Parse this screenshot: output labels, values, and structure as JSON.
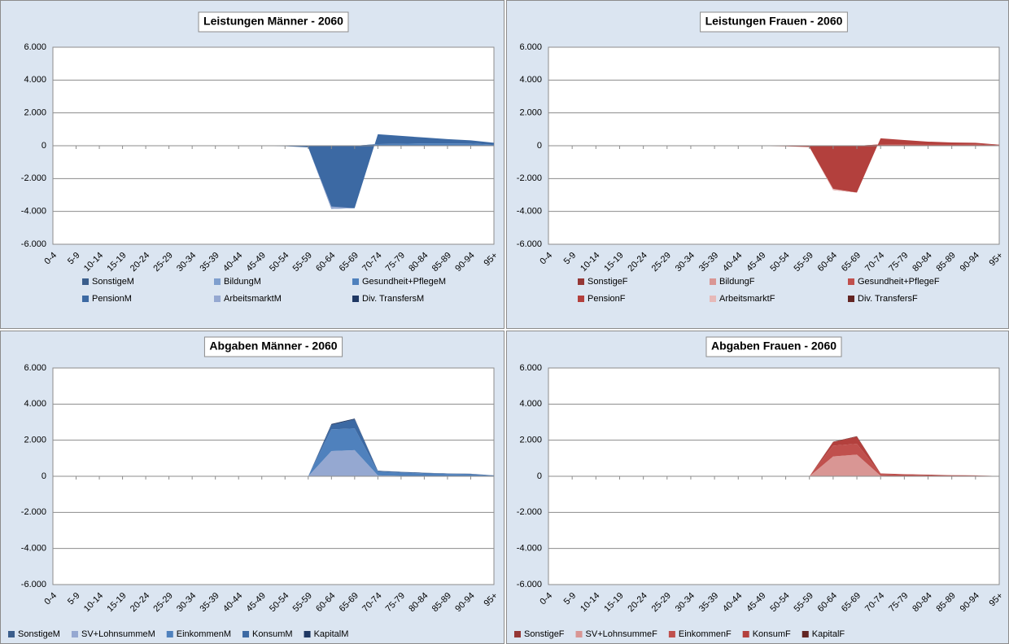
{
  "chart_data": [
    {
      "type": "area",
      "title": "Leistungen Männer - 2060",
      "categories": [
        "0-4",
        "5-9",
        "10-14",
        "15-19",
        "20-24",
        "25-29",
        "30-34",
        "35-39",
        "40-44",
        "45-49",
        "50-54",
        "55-59",
        "60-64",
        "65-69",
        "70-74",
        "75-79",
        "80-84",
        "85-89",
        "90-94",
        "95+"
      ],
      "ylim": [
        -6000,
        6000
      ],
      "yticks": [
        {
          "value": -6000,
          "label": "-6.000"
        },
        {
          "value": -4000,
          "label": "-4.000"
        },
        {
          "value": -2000,
          "label": "-2.000"
        },
        0,
        {
          "value": 2000,
          "label": "2.000"
        },
        {
          "value": 4000,
          "label": "4.000"
        },
        {
          "value": 6000,
          "label": "6.000"
        }
      ],
      "grid": true,
      "series": [
        {
          "name": "SonstigeM",
          "color": "#3b5e8c",
          "values": [
            0,
            0,
            0,
            0,
            0,
            0,
            0,
            0,
            0,
            0,
            0,
            0,
            0,
            0,
            20,
            20,
            20,
            20,
            20,
            10
          ]
        },
        {
          "name": "BildungM",
          "color": "#7f9fce",
          "values": [
            0,
            0,
            0,
            0,
            0,
            0,
            0,
            0,
            0,
            0,
            0,
            0,
            0,
            0,
            0,
            0,
            0,
            0,
            0,
            0
          ]
        },
        {
          "name": "Gesundheit+PflegeM",
          "color": "#4f81bd",
          "values": [
            0,
            0,
            0,
            0,
            0,
            0,
            0,
            0,
            0,
            0,
            0,
            0,
            0,
            0,
            80,
            100,
            120,
            120,
            110,
            60
          ]
        },
        {
          "name": "PensionM",
          "color": "#3c69a3",
          "values": [
            0,
            0,
            0,
            0,
            0,
            0,
            0,
            0,
            0,
            -20,
            -30,
            -100,
            -3850,
            -3800,
            600,
            480,
            360,
            260,
            200,
            110
          ]
        },
        {
          "name": "ArbeitsmarktM",
          "color": "#95a8d1",
          "values": [
            0,
            0,
            0,
            0,
            0,
            0,
            0,
            0,
            0,
            0,
            0,
            0,
            150,
            0,
            0,
            0,
            0,
            0,
            0,
            0
          ]
        },
        {
          "name": "Div. TransfersM",
          "color": "#1f3864",
          "values": [
            0,
            0,
            0,
            0,
            0,
            0,
            0,
            0,
            0,
            0,
            0,
            0,
            0,
            0,
            0,
            0,
            0,
            0,
            0,
            0
          ]
        }
      ]
    },
    {
      "type": "area",
      "title": "Leistungen Frauen - 2060",
      "categories": [
        "0-4",
        "5-9",
        "10-14",
        "15-19",
        "20-24",
        "25-29",
        "30-34",
        "35-39",
        "40-44",
        "45-49",
        "50-54",
        "55-59",
        "60-64",
        "65-69",
        "70-74",
        "75-79",
        "80-84",
        "85-89",
        "90-94",
        "95+"
      ],
      "ylim": [
        -6000,
        6000
      ],
      "yticks": [
        {
          "value": -6000,
          "label": "-6.000"
        },
        {
          "value": -4000,
          "label": "-4.000"
        },
        {
          "value": -2000,
          "label": "-2.000"
        },
        0,
        {
          "value": 2000,
          "label": "2.000"
        },
        {
          "value": 4000,
          "label": "4.000"
        },
        {
          "value": 6000,
          "label": "6.000"
        }
      ],
      "grid": true,
      "series": [
        {
          "name": "SonstigeF",
          "color": "#953735",
          "values": [
            0,
            0,
            0,
            0,
            0,
            0,
            0,
            0,
            0,
            0,
            0,
            0,
            0,
            0,
            20,
            20,
            20,
            20,
            20,
            10
          ]
        },
        {
          "name": "BildungF",
          "color": "#d99694",
          "values": [
            0,
            0,
            0,
            0,
            0,
            0,
            0,
            0,
            0,
            0,
            0,
            0,
            0,
            0,
            0,
            0,
            0,
            0,
            0,
            0
          ]
        },
        {
          "name": "Gesundheit+PflegeF",
          "color": "#c0504d",
          "values": [
            0,
            0,
            0,
            0,
            0,
            0,
            0,
            0,
            0,
            0,
            0,
            0,
            0,
            0,
            60,
            70,
            80,
            80,
            70,
            30
          ]
        },
        {
          "name": "PensionF",
          "color": "#b3403d",
          "values": [
            0,
            0,
            0,
            0,
            0,
            0,
            0,
            0,
            0,
            -20,
            -40,
            -80,
            -2700,
            -2850,
            370,
            260,
            150,
            100,
            90,
            20
          ]
        },
        {
          "name": "ArbeitsmarktF",
          "color": "#e6b9b8",
          "values": [
            0,
            0,
            0,
            0,
            0,
            0,
            0,
            0,
            0,
            0,
            0,
            0,
            80,
            0,
            0,
            0,
            0,
            0,
            0,
            0
          ]
        },
        {
          "name": "Div. TransfersF",
          "color": "#632523",
          "values": [
            0,
            0,
            0,
            0,
            0,
            0,
            0,
            0,
            0,
            0,
            0,
            0,
            0,
            0,
            0,
            0,
            0,
            0,
            0,
            0
          ]
        }
      ]
    },
    {
      "type": "area",
      "title": "Abgaben Männer - 2060",
      "categories": [
        "0-4",
        "5-9",
        "10-14",
        "15-19",
        "20-24",
        "25-29",
        "30-34",
        "35-39",
        "40-44",
        "45-49",
        "50-54",
        "55-59",
        "60-64",
        "65-69",
        "70-74",
        "75-79",
        "80-84",
        "85-89",
        "90-94",
        "95+"
      ],
      "ylim": [
        -6000,
        6000
      ],
      "yticks": [
        {
          "value": -6000,
          "label": "-6.000"
        },
        {
          "value": -4000,
          "label": "-4.000"
        },
        {
          "value": -2000,
          "label": "-2.000"
        },
        0,
        {
          "value": 2000,
          "label": "2.000"
        },
        {
          "value": 4000,
          "label": "4.000"
        },
        {
          "value": 6000,
          "label": "6.000"
        }
      ],
      "grid": true,
      "series": [
        {
          "name": "SonstigeM",
          "color": "#3b5e8c",
          "values": [
            0,
            0,
            0,
            0,
            0,
            0,
            0,
            0,
            0,
            0,
            0,
            0,
            0,
            0,
            0,
            0,
            0,
            0,
            0,
            0
          ]
        },
        {
          "name": "SV+LohnsummeM",
          "color": "#95a8d1",
          "values": [
            0,
            0,
            0,
            0,
            0,
            0,
            0,
            0,
            0,
            0,
            0,
            0,
            1400,
            1450,
            50,
            20,
            10,
            0,
            0,
            0
          ]
        },
        {
          "name": "EinkommenM",
          "color": "#4f81bd",
          "values": [
            0,
            0,
            0,
            0,
            0,
            0,
            0,
            0,
            0,
            0,
            0,
            0,
            1200,
            1200,
            200,
            180,
            150,
            130,
            110,
            40
          ]
        },
        {
          "name": "KonsumM",
          "color": "#3c69a3",
          "values": [
            0,
            0,
            0,
            0,
            0,
            0,
            0,
            0,
            0,
            0,
            0,
            0,
            250,
            500,
            50,
            40,
            30,
            20,
            20,
            10
          ]
        },
        {
          "name": "KapitalM",
          "color": "#1f3864",
          "values": [
            0,
            0,
            0,
            0,
            0,
            0,
            0,
            0,
            0,
            0,
            0,
            0,
            50,
            50,
            10,
            10,
            10,
            10,
            10,
            0
          ]
        }
      ]
    },
    {
      "type": "area",
      "title": "Abgaben Frauen - 2060",
      "categories": [
        "0-4",
        "5-9",
        "10-14",
        "15-19",
        "20-24",
        "25-29",
        "30-34",
        "35-39",
        "40-44",
        "45-49",
        "50-54",
        "55-59",
        "60-64",
        "65-69",
        "70-74",
        "75-79",
        "80-84",
        "85-89",
        "90-94",
        "95+"
      ],
      "ylim": [
        -6000,
        6000
      ],
      "yticks": [
        {
          "value": -6000,
          "label": "-6.000"
        },
        {
          "value": -4000,
          "label": "-4.000"
        },
        {
          "value": -2000,
          "label": "-2.000"
        },
        0,
        {
          "value": 2000,
          "label": "2.000"
        },
        {
          "value": 4000,
          "label": "4.000"
        },
        {
          "value": 6000,
          "label": "6.000"
        }
      ],
      "grid": true,
      "series": [
        {
          "name": "SonstigeF",
          "color": "#953735",
          "values": [
            0,
            0,
            0,
            0,
            0,
            0,
            0,
            0,
            0,
            0,
            0,
            0,
            0,
            0,
            0,
            0,
            0,
            0,
            0,
            0
          ]
        },
        {
          "name": "SV+LohnsummeF",
          "color": "#d99694",
          "values": [
            0,
            0,
            0,
            0,
            0,
            0,
            0,
            0,
            0,
            0,
            0,
            0,
            1100,
            1200,
            30,
            10,
            0,
            0,
            0,
            0
          ]
        },
        {
          "name": "EinkommenF",
          "color": "#c0504d",
          "values": [
            0,
            0,
            0,
            0,
            0,
            0,
            0,
            0,
            0,
            0,
            0,
            0,
            600,
            600,
            100,
            90,
            70,
            50,
            40,
            10
          ]
        },
        {
          "name": "KonsumF",
          "color": "#b3403d",
          "values": [
            0,
            0,
            0,
            0,
            0,
            0,
            0,
            0,
            0,
            0,
            0,
            0,
            200,
            400,
            30,
            20,
            20,
            10,
            10,
            0
          ]
        },
        {
          "name": "KapitalF",
          "color": "#632523",
          "values": [
            0,
            0,
            0,
            0,
            0,
            0,
            0,
            0,
            0,
            0,
            0,
            0,
            20,
            20,
            0,
            0,
            0,
            0,
            0,
            0
          ]
        }
      ]
    }
  ]
}
